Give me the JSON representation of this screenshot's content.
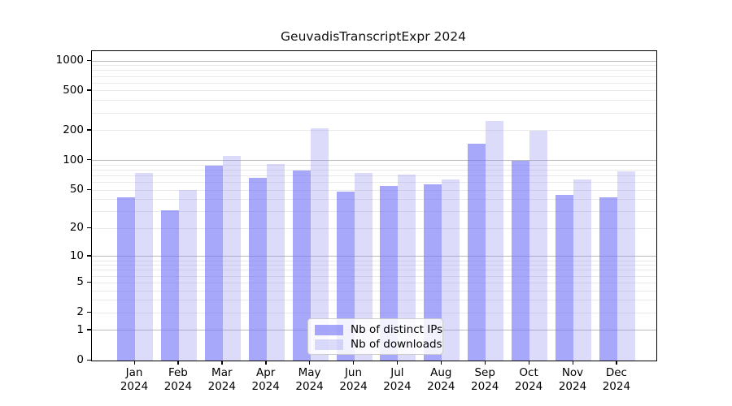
{
  "chart_data": {
    "type": "bar",
    "title": "GeuvadisTranscriptExpr 2024",
    "categories": [
      "Jan 2024",
      "Feb 2024",
      "Mar 2024",
      "Apr 2024",
      "May 2024",
      "Jun 2024",
      "Jul 2024",
      "Aug 2024",
      "Sep 2024",
      "Oct 2024",
      "Nov 2024",
      "Dec 2024"
    ],
    "series": [
      {
        "name": "Nb of distinct IPs",
        "color": "rgba(110,110,247,0.6)",
        "values": [
          42,
          31,
          88,
          67,
          79,
          48,
          55,
          57,
          148,
          100,
          45,
          42
        ]
      },
      {
        "name": "Nb of downloads",
        "color": "rgba(138,138,238,0.3)",
        "values": [
          75,
          50,
          111,
          92,
          212,
          75,
          72,
          64,
          250,
          200,
          64,
          78
        ]
      }
    ],
    "xlabel": "",
    "ylabel": "",
    "yscale": "log1p",
    "ylim": [
      0,
      1253
    ],
    "yticks": [
      0,
      1,
      2,
      5,
      10,
      20,
      50,
      100,
      200,
      500,
      1000
    ],
    "grid": "horizontal, major and minor",
    "legend_position": "lower center"
  },
  "colors": {
    "grid_major": "#bbbbbb",
    "grid_minor": "#e9e9e9",
    "axis": "#000000",
    "background": "#ffffff",
    "title_text": "#111111"
  }
}
